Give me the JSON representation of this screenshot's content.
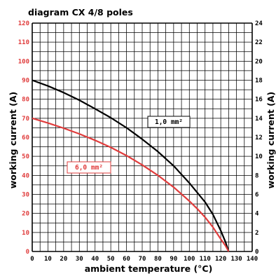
{
  "chart_data": {
    "type": "line",
    "title": "diagram CX 4/8 poles",
    "xlabel": "ambient temperature (°C)",
    "ylabel_left": "working current (A)",
    "ylabel_right": "working current (A)",
    "xlim": [
      0,
      140
    ],
    "ylim_left": [
      0,
      120
    ],
    "ylim_right": [
      0,
      24
    ],
    "x_ticks": [
      0,
      10,
      20,
      30,
      40,
      50,
      60,
      70,
      80,
      90,
      100,
      110,
      120,
      130,
      140
    ],
    "y_ticks_left": [
      0,
      10,
      20,
      30,
      40,
      50,
      60,
      70,
      80,
      90,
      100,
      110,
      120
    ],
    "y_ticks_right": [
      0,
      2,
      4,
      6,
      8,
      10,
      12,
      14,
      16,
      18,
      20,
      22,
      24
    ],
    "grid": true,
    "series": [
      {
        "name": "1,0 mm²",
        "color": "#000000",
        "axis": "left",
        "x": [
          0,
          10,
          20,
          30,
          40,
          50,
          60,
          70,
          80,
          90,
          100,
          105,
          110,
          115,
          120,
          123,
          125
        ],
        "y": [
          90,
          87,
          83.5,
          79.5,
          75,
          70.3,
          65,
          59,
          52.5,
          45,
          36,
          31,
          26,
          19.5,
          11,
          5,
          0
        ]
      },
      {
        "name": "6,0 mm²",
        "color": "#e03c3c",
        "axis": "left",
        "x": [
          0,
          10,
          20,
          30,
          40,
          50,
          60,
          70,
          80,
          90,
          100,
          105,
          110,
          115,
          120,
          123,
          125
        ],
        "y": [
          70,
          67.5,
          64.8,
          61.8,
          58.4,
          54.7,
          50.4,
          45.5,
          40,
          33.8,
          26.5,
          22.5,
          18,
          12.8,
          6.5,
          3,
          0
        ]
      }
    ],
    "colors": {
      "left_axis_text": "#e03c3c",
      "right_axis_text": "#000000"
    }
  }
}
